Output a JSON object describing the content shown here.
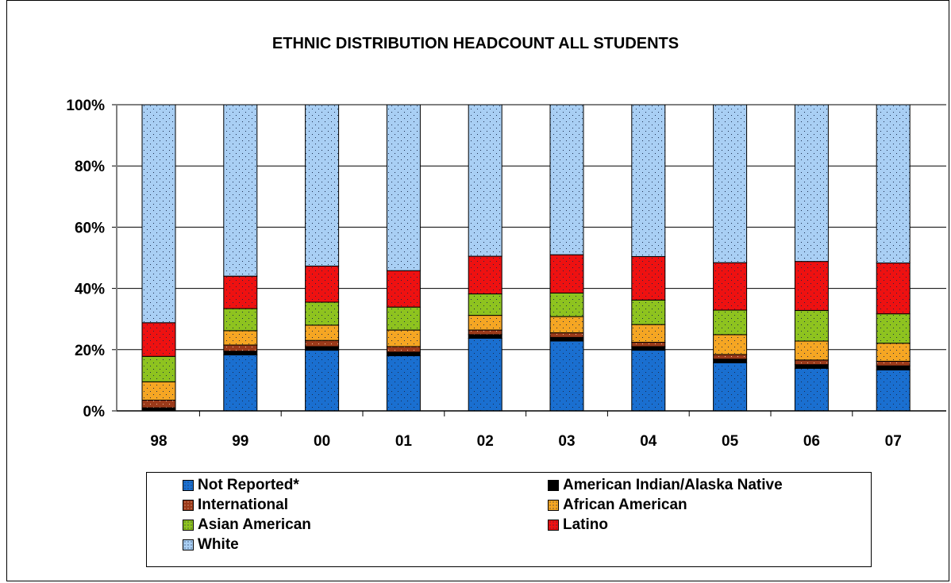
{
  "chart_data": {
    "type": "bar",
    "stacked": true,
    "percent": true,
    "title": "ETHNIC DISTRIBUTION HEADCOUNT ALL STUDENTS",
    "categories": [
      "98",
      "99",
      "00",
      "01",
      "02",
      "03",
      "04",
      "05",
      "06",
      "07"
    ],
    "y_ticks": [
      "0%",
      "20%",
      "40%",
      "60%",
      "80%",
      "100%"
    ],
    "ylim": [
      0,
      100
    ],
    "grid": true,
    "legend_position": "bottom",
    "series": [
      {
        "name": "Not Reported*",
        "color": "#1a6fd0",
        "pattern": "dots-dark",
        "values": [
          0,
          18.3,
          19.8,
          18,
          23.7,
          22.8,
          19.8,
          15.7,
          13.9,
          13.4
        ]
      },
      {
        "name": "American Indian/Alaska Native",
        "color": "#000000",
        "pattern": "none",
        "values": [
          1,
          1.2,
          1.2,
          1.2,
          1.2,
          1.2,
          1.2,
          1.2,
          1.2,
          1.3
        ]
      },
      {
        "name": "International",
        "color": "#9b3a1a",
        "pattern": "dots-light",
        "values": [
          2.5,
          2,
          2,
          1.8,
          1.5,
          1.5,
          1.4,
          1.5,
          1.5,
          1.5
        ]
      },
      {
        "name": "African American",
        "color": "#f5a623",
        "pattern": "dots-dark",
        "values": [
          6,
          4.7,
          5,
          5.4,
          4.8,
          5.3,
          5.8,
          6.5,
          6.2,
          5.9
        ]
      },
      {
        "name": "Asian American",
        "color": "#8ec31f",
        "pattern": "dots-dark",
        "values": [
          8.3,
          7.2,
          7.5,
          7.5,
          7,
          7.7,
          8,
          8,
          10,
          9.6
        ]
      },
      {
        "name": "Latino",
        "color": "#ee1111",
        "pattern": "dots-dark",
        "values": [
          11,
          10.6,
          11.8,
          11.9,
          12.3,
          12.5,
          14.2,
          15.5,
          16,
          16.6
        ]
      },
      {
        "name": "White",
        "color": "#a9cff4",
        "pattern": "dots-dark",
        "values": [
          71.2,
          56,
          52.7,
          54.2,
          49.5,
          49,
          49.6,
          51.6,
          51.2,
          51.7
        ]
      }
    ]
  }
}
